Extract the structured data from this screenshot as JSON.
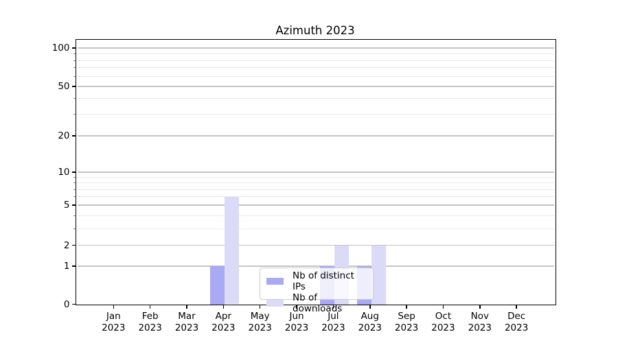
{
  "figure_title": "Azimuth 2023",
  "chart_data": {
    "type": "bar",
    "title": "Azimuth 2023",
    "categories": [
      "Jan 2023",
      "Feb 2023",
      "Mar 2023",
      "Apr 2023",
      "May 2023",
      "Jun 2023",
      "Jul 2023",
      "Aug 2023",
      "Sep 2023",
      "Oct 2023",
      "Nov 2023",
      "Dec 2023"
    ],
    "series": [
      {
        "name": "Nb of distinct IPs",
        "color": "#a9a9f5",
        "values": [
          0,
          0,
          0,
          1,
          0,
          0,
          1,
          1,
          0,
          0,
          0,
          0
        ]
      },
      {
        "name": "Nb of downloads",
        "color": "#dbdbf8",
        "values": [
          0,
          0,
          0,
          6,
          0,
          0,
          2,
          2,
          0,
          0,
          0,
          0
        ]
      }
    ],
    "yscale": "log-like",
    "ylim": [
      0,
      113
    ],
    "yticks": [
      0,
      1,
      2,
      5,
      10,
      20,
      50,
      100
    ],
    "ytick_labels": [
      "0",
      "1",
      "2",
      "5",
      "10",
      "20",
      "50",
      "100"
    ],
    "minor_yticks": [
      3,
      4,
      6,
      7,
      8,
      9,
      30,
      40,
      60,
      70,
      80,
      90
    ],
    "grid": true,
    "legend_position": "lower center"
  },
  "legend": {
    "items": [
      {
        "label": "Nb of distinct IPs",
        "swatch_color": "#a9a9f5"
      },
      {
        "label": "Nb of downloads",
        "swatch_color": "#dbdbf8"
      }
    ]
  },
  "colors": {
    "background": "#ffffff",
    "spine": "#000000",
    "grid_major": "#c4c4c4",
    "grid_minor": "#eaeaea",
    "bar_distinct_ips": "#a9a9f5",
    "bar_downloads": "#dbdbf8",
    "legend_border": "#cbcbcb"
  }
}
